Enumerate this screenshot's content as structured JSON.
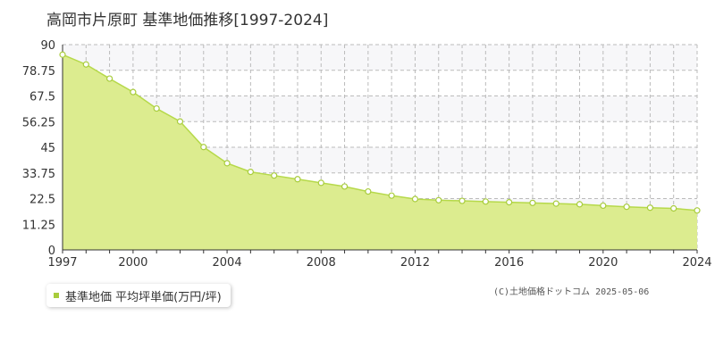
{
  "title": "高岡市片原町 基準地価推移[1997-2024]",
  "legend": {
    "label": "基準地価 平均坪単価(万円/坪)"
  },
  "copyright": "(C)土地価格ドットコム 2025-05-06",
  "colors": {
    "fill": "#dcec8f",
    "line": "#b6d94a",
    "marker_fill": "#ffffff",
    "marker_stroke": "#a8cc3c",
    "grid": "#bbbbbb",
    "band": "#f7f7f9",
    "axis": "#333333",
    "text": "#333333",
    "legend_swatch": "#a8cc3c"
  },
  "chart_data": {
    "type": "area",
    "title": "高岡市片原町 基準地価推移[1997-2024]",
    "x": [
      1997,
      1998,
      1999,
      2000,
      2001,
      2002,
      2003,
      2004,
      2005,
      2006,
      2007,
      2008,
      2009,
      2010,
      2011,
      2012,
      2013,
      2014,
      2015,
      2016,
      2017,
      2018,
      2019,
      2020,
      2021,
      2022,
      2023,
      2024
    ],
    "series": [
      {
        "name": "基準地価 平均坪単価(万円/坪)",
        "values": [
          85.6,
          81.3,
          75.1,
          69.2,
          62.0,
          56.3,
          45.1,
          38.0,
          34.2,
          32.6,
          31.0,
          29.4,
          27.8,
          25.6,
          23.8,
          22.3,
          21.8,
          21.5,
          21.2,
          20.9,
          20.6,
          20.3,
          20.0,
          19.4,
          18.9,
          18.5,
          18.2,
          17.3
        ]
      }
    ],
    "xlim": [
      1997,
      2024
    ],
    "ylim": [
      0,
      90
    ],
    "x_ticks": [
      "1997",
      "2000",
      "2004",
      "2008",
      "2012",
      "2016",
      "2020",
      "2024"
    ],
    "y_ticks": [
      "0",
      "11.25",
      "22.5",
      "33.75",
      "45",
      "56.25",
      "67.5",
      "78.75",
      "90"
    ],
    "grid": true,
    "legend_position": "bottom-left"
  }
}
